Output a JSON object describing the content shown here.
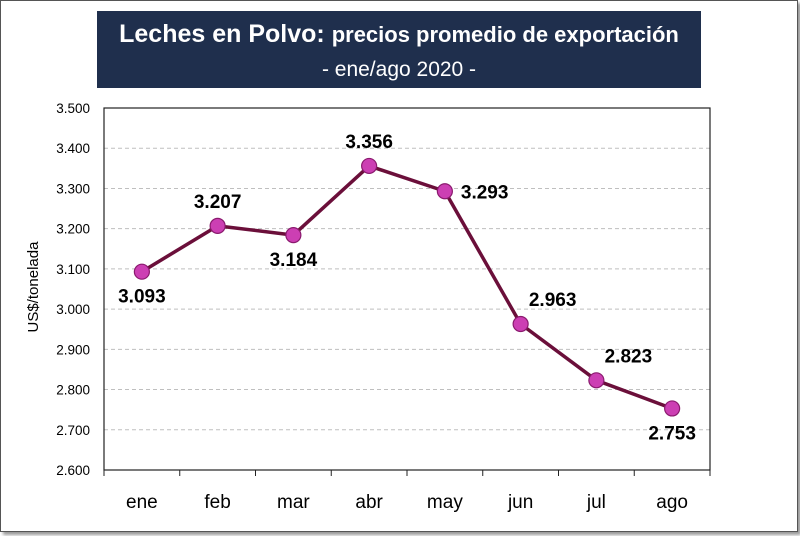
{
  "title": {
    "main": "Leches en Polvo:",
    "rest": "precios promedio de exportación",
    "subtitle": "- ene/ago 2020 -"
  },
  "colors": {
    "title_bg": "#1f2f4d",
    "line": "#6b0f3a",
    "marker_fill": "#cc3fb3",
    "marker_stroke": "#8a1a6e",
    "grid": "#bfbfbf"
  },
  "chart_data": {
    "type": "line",
    "title": "Leches en Polvo: precios promedio de exportación",
    "subtitle": "- ene/ago 2020 -",
    "xlabel": "",
    "ylabel": "US$/tonelada",
    "categories": [
      "ene",
      "feb",
      "mar",
      "abr",
      "may",
      "jun",
      "jul",
      "ago"
    ],
    "values": [
      3093,
      3207,
      3184,
      3356,
      3293,
      2963,
      2823,
      2753
    ],
    "value_labels": [
      "3.093",
      "3.207",
      "3.184",
      "3.356",
      "3.293",
      "2.963",
      "2.823",
      "2.753"
    ],
    "ylim": [
      2600,
      3500
    ],
    "yticks": [
      2600,
      2700,
      2800,
      2900,
      3000,
      3100,
      3200,
      3300,
      3400,
      3500
    ],
    "ytick_labels": [
      "2.600",
      "2.700",
      "2.800",
      "2.900",
      "3.000",
      "3.100",
      "3.200",
      "3.300",
      "3.400",
      "3.500"
    ],
    "grid": "horizontal dashed",
    "legend": "none"
  }
}
